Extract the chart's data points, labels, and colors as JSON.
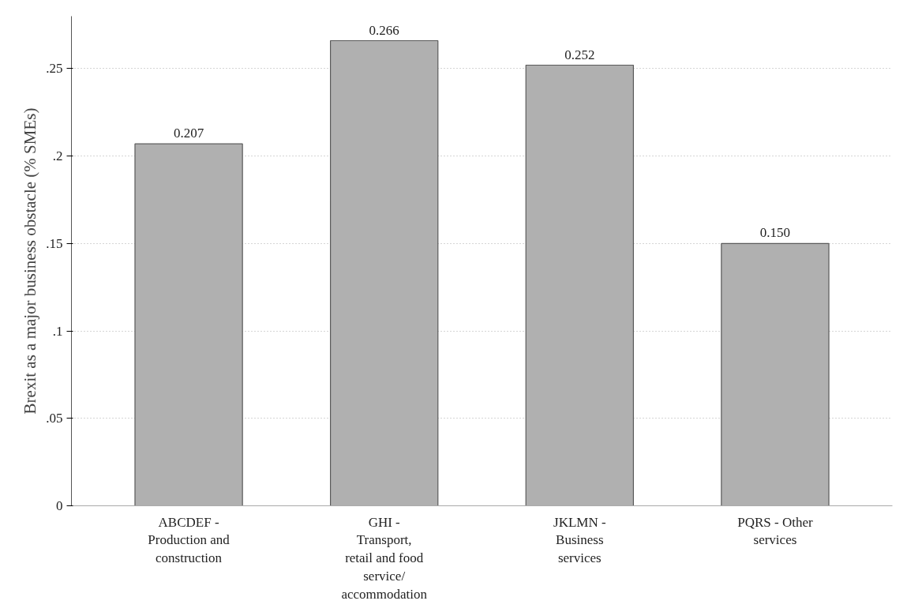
{
  "chart_data": {
    "type": "bar",
    "ylabel": "Brexit as a major business obstacle (% SMEs)",
    "categories": [
      "ABCDEF -\nProduction and\nconstruction",
      "GHI -\nTransport,\nretail and food\nservice/\naccommodation",
      "JKLMN -\nBusiness\nservices",
      "PQRS - Other\nservices"
    ],
    "values": [
      0.207,
      0.266,
      0.252,
      0.15
    ],
    "value_labels": [
      "0.207",
      "0.266",
      "0.252",
      "0.150"
    ],
    "color": "#b0b0b0",
    "ylim": [
      0,
      0.28
    ],
    "yticks": [
      {
        "value": 0,
        "label": "0"
      },
      {
        "value": 0.05,
        "label": ".05"
      },
      {
        "value": 0.1,
        "label": ".1"
      },
      {
        "value": 0.15,
        "label": ".15"
      },
      {
        "value": 0.2,
        "label": ".2"
      },
      {
        "value": 0.25,
        "label": ".25"
      }
    ],
    "grid": "y"
  }
}
